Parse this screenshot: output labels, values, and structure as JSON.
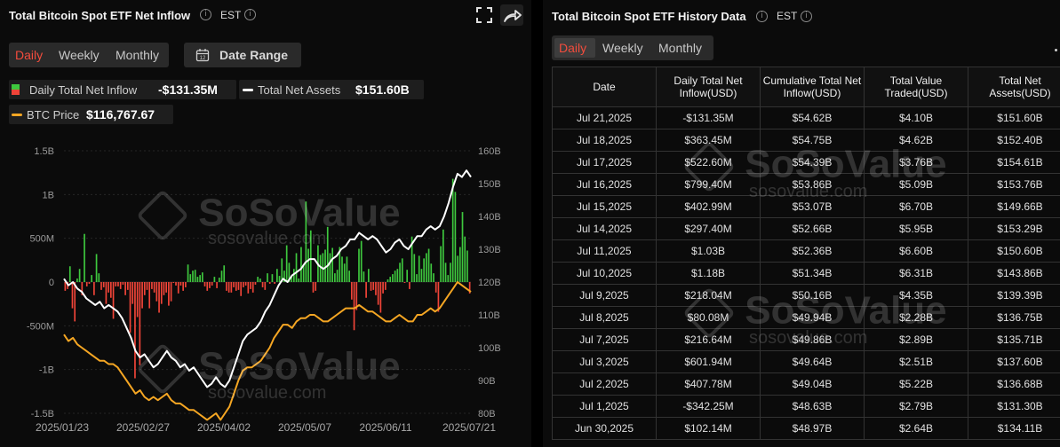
{
  "left": {
    "title": "Total Bitcoin Spot ETF Net Inflow",
    "timezone": "EST",
    "tabs": [
      "Daily",
      "Weekly",
      "Monthly"
    ],
    "active_tab": "Daily",
    "date_range_label": "Date Range",
    "legend": {
      "inflow_label": "Daily Total Net Inflow",
      "inflow_value": "-$131.35M",
      "assets_label": "Total Net Assets",
      "assets_value": "$151.60B",
      "btc_label": "BTC Price",
      "btc_value": "$116,767.67"
    },
    "watermark": {
      "brand": "SoSoValue",
      "url": "sosovalue.com"
    }
  },
  "right": {
    "title": "Total Bitcoin Spot ETF History Data",
    "timezone": "EST",
    "tabs": [
      "Daily",
      "Weekly",
      "Monthly"
    ],
    "active_tab": "Daily",
    "columns": [
      "Date",
      "Daily Total Net Inflow(USD)",
      "Cumulative Total Net Inflow(USD)",
      "Total Value Traded(USD)",
      "Total Net Assets(USD)"
    ],
    "rows": [
      [
        "Jul 21,2025",
        "-$131.35M",
        "$54.62B",
        "$4.10B",
        "$151.60B"
      ],
      [
        "Jul 18,2025",
        "$363.45M",
        "$54.75B",
        "$4.62B",
        "$152.40B"
      ],
      [
        "Jul 17,2025",
        "$522.60M",
        "$54.39B",
        "$3.76B",
        "$154.61B"
      ],
      [
        "Jul 16,2025",
        "$799.40M",
        "$53.86B",
        "$5.09B",
        "$153.76B"
      ],
      [
        "Jul 15,2025",
        "$402.99M",
        "$53.07B",
        "$6.70B",
        "$149.66B"
      ],
      [
        "Jul 14,2025",
        "$297.40M",
        "$52.66B",
        "$5.95B",
        "$153.29B"
      ],
      [
        "Jul 11,2025",
        "$1.03B",
        "$52.36B",
        "$6.60B",
        "$150.60B"
      ],
      [
        "Jul 10,2025",
        "$1.18B",
        "$51.34B",
        "$6.31B",
        "$143.86B"
      ],
      [
        "Jul 9,2025",
        "$218.04M",
        "$50.16B",
        "$4.35B",
        "$139.39B"
      ],
      [
        "Jul 8,2025",
        "$80.08M",
        "$49.94B",
        "$2.28B",
        "$136.75B"
      ],
      [
        "Jul 7,2025",
        "$216.64M",
        "$49.86B",
        "$2.89B",
        "$135.71B"
      ],
      [
        "Jul 3,2025",
        "$601.94M",
        "$49.64B",
        "$2.51B",
        "$137.60B"
      ],
      [
        "Jul 2,2025",
        "$407.78M",
        "$49.04B",
        "$5.22B",
        "$136.68B"
      ],
      [
        "Jul 1,2025",
        "-$342.25M",
        "$48.63B",
        "$2.79B",
        "$131.30B"
      ],
      [
        "Jun 30,2025",
        "$102.14M",
        "$48.97B",
        "$2.64B",
        "$134.11B"
      ]
    ],
    "watermark": {
      "brand": "SoSoValue",
      "url": "sosovalue.com"
    }
  },
  "chart_data": {
    "type": "bar",
    "title": "Total Bitcoin Spot ETF Net Inflow",
    "x_tick_labels": [
      "2025/01/23",
      "2025/02/27",
      "2025/04/02",
      "2025/05/07",
      "2025/06/11",
      "2025/07/21"
    ],
    "y_left_ticks": [
      "1.5B",
      "1B",
      "500M",
      "0",
      "-500M",
      "-1B",
      "-1.5B"
    ],
    "y_left_range": [
      -1500,
      1500
    ],
    "y_left_unit": "M USD",
    "y_right_ticks": [
      "160B",
      "150B",
      "140B",
      "130B",
      "120B",
      "110B",
      "100B",
      "90B",
      "80B"
    ],
    "y_right_range": [
      80,
      160
    ],
    "y_right_unit": "B USD",
    "grid": true,
    "colors": {
      "positive": "#3ec83e",
      "negative": "#f04438",
      "assets": "#ffffff",
      "btc": "#f5a623"
    },
    "series": [
      {
        "name": "Daily Total Net Inflow",
        "type": "bar",
        "axis": "left",
        "values": [
          -100,
          -80,
          180,
          -300,
          -450,
          40,
          150,
          -150,
          550,
          -50,
          -20,
          80,
          -150,
          320,
          100,
          -90,
          -60,
          -250,
          -120,
          -180,
          -420,
          -50,
          -50,
          -80,
          -30,
          -150,
          -90,
          -580,
          -250,
          -1100,
          -400,
          -950,
          -300,
          -150,
          -90,
          -300,
          -80,
          -120,
          -220,
          -350,
          -250,
          -150,
          -120,
          -270,
          -220,
          -10,
          -40,
          -130,
          -40,
          -100,
          -60,
          200,
          90,
          130,
          140,
          60,
          80,
          110,
          -50,
          -100,
          -70,
          -40,
          60,
          -70,
          50,
          130,
          190,
          -100,
          -120,
          -120,
          -60,
          -100,
          -90,
          -160,
          -60,
          -40,
          -130,
          -80,
          -120,
          -30,
          60,
          40,
          -60,
          -90,
          100,
          -20,
          90,
          -20,
          150,
          70,
          270,
          130,
          420,
          220,
          70,
          150,
          330,
          40,
          400,
          200,
          920,
          380,
          590,
          -120,
          -100,
          420,
          310,
          330,
          370,
          630,
          330,
          390,
          100,
          140,
          400,
          290,
          210,
          290,
          130,
          -200,
          -550,
          -320,
          380,
          470,
          120,
          -180,
          150,
          -100,
          -90,
          -150,
          -260,
          -350,
          -130,
          -90,
          30,
          60,
          90,
          130,
          150,
          220,
          270,
          -10,
          140,
          -80,
          520,
          320,
          90,
          300,
          150,
          270,
          330,
          380,
          210,
          100,
          -120,
          -340,
          410,
          600,
          220,
          80,
          220,
          1180,
          1030,
          300,
          400,
          800,
          520,
          360,
          -131
        ]
      },
      {
        "name": "Total Net Assets",
        "type": "line",
        "axis": "right",
        "values": [
          121,
          119,
          120,
          118,
          117,
          115,
          114,
          113,
          114,
          112,
          113,
          112,
          111,
          109,
          106,
          103,
          99,
          97,
          98,
          96,
          94,
          95,
          97,
          99,
          97,
          96,
          94,
          95,
          93,
          94,
          92,
          90,
          88,
          89,
          91,
          89,
          88,
          90,
          94,
          98,
          102,
          104,
          105,
          106,
          108,
          111,
          113,
          116,
          119,
          121,
          120,
          122,
          123,
          124,
          126,
          127,
          127,
          125,
          124,
          125,
          127,
          128,
          130,
          131,
          133,
          133,
          135,
          134,
          133,
          134,
          133,
          131,
          129,
          130,
          132,
          133,
          131,
          130,
          132,
          134,
          134,
          136,
          137,
          136,
          137,
          140,
          144,
          149,
          153,
          152,
          154,
          152
        ]
      },
      {
        "name": "BTC Price",
        "type": "line",
        "axis": "right",
        "values": [
          104,
          102,
          103,
          101,
          100,
          99,
          98,
          97,
          96,
          96,
          95,
          95,
          94,
          92,
          90,
          88,
          86,
          87,
          85,
          84,
          85,
          84,
          85,
          86,
          84,
          83,
          83,
          82,
          81,
          81,
          80,
          79,
          78,
          79,
          80,
          78,
          80,
          82,
          86,
          90,
          93,
          94,
          94,
          95,
          96,
          98,
          100,
          103,
          105,
          107,
          107,
          106,
          108,
          109,
          109,
          110,
          110,
          109,
          108,
          108,
          109,
          110,
          111,
          112,
          112,
          112,
          113,
          112,
          111,
          111,
          110,
          109,
          108,
          108,
          109,
          110,
          109,
          108,
          108,
          110,
          110,
          111,
          112,
          111,
          112,
          114,
          116,
          118,
          120,
          119,
          118,
          117
        ]
      }
    ]
  }
}
